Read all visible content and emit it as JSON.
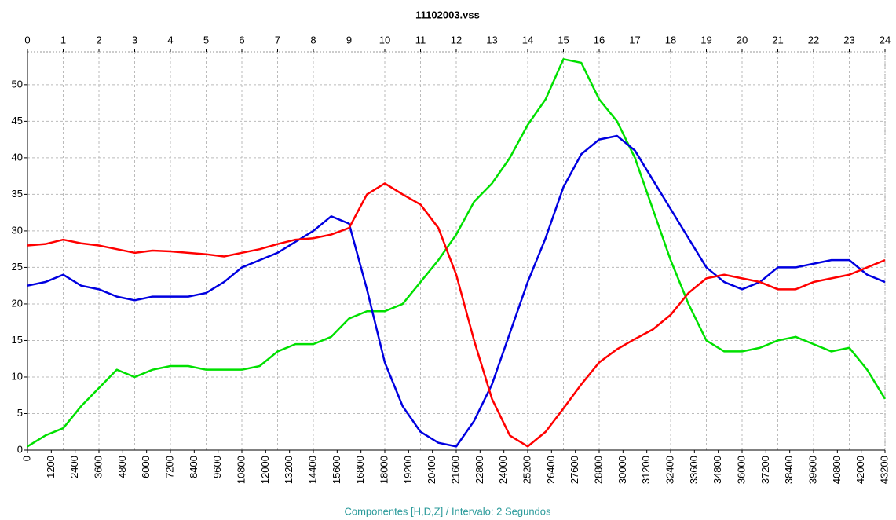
{
  "chart_data": {
    "type": "line",
    "title": "11102003.vss",
    "x_label": "Componentes [H,D,Z] / Intervalo: 2 Segundos",
    "x": [
      0,
      900,
      1800,
      2700,
      3600,
      4500,
      5400,
      6300,
      7200,
      8100,
      9000,
      9900,
      10800,
      11700,
      12600,
      13500,
      14400,
      15300,
      16200,
      17100,
      18000,
      18900,
      19800,
      20700,
      21600,
      22500,
      23400,
      24300,
      25200,
      26100,
      27000,
      27900,
      28800,
      29700,
      30600,
      31500,
      32400,
      33300,
      34200,
      35100,
      36000,
      36900,
      37800,
      38700,
      39600,
      40500,
      41400,
      42300,
      43200
    ],
    "xlim": [
      0,
      43200
    ],
    "xticks": [
      0,
      1200,
      2400,
      3600,
      4800,
      6000,
      7200,
      8400,
      9600,
      10800,
      12000,
      13200,
      14400,
      15600,
      16800,
      18000,
      19200,
      20400,
      21600,
      22800,
      24000,
      25200,
      26400,
      27600,
      28800,
      30000,
      31200,
      32400,
      33600,
      34800,
      36000,
      37200,
      38400,
      39600,
      40800,
      42000,
      43200
    ],
    "x2lim": [
      0,
      24
    ],
    "x2ticks": [
      0,
      1,
      2,
      3,
      4,
      5,
      6,
      7,
      8,
      9,
      10,
      11,
      12,
      13,
      14,
      15,
      16,
      17,
      18,
      19,
      20,
      21,
      22,
      23,
      24
    ],
    "ylim": [
      0,
      54.5
    ],
    "yticks": [
      0,
      5,
      10,
      15,
      20,
      25,
      30,
      35,
      40,
      45,
      50
    ],
    "grid": true,
    "series": [
      {
        "color": "#00e000",
        "values": [
          0.5,
          2,
          3,
          6,
          8.5,
          11,
          10,
          11,
          11.5,
          11.5,
          11,
          11,
          11,
          11.5,
          13.5,
          14.5,
          14.5,
          15.5,
          18,
          19,
          19,
          20,
          23,
          26,
          29.5,
          34,
          36.5,
          40,
          44.5,
          48,
          53.5,
          53,
          48,
          45,
          40,
          33,
          26,
          20,
          15,
          13.5,
          13.5,
          14,
          15,
          15.5,
          14.5,
          13.5,
          14,
          11,
          7
        ]
      },
      {
        "color": "#0000e0",
        "values": [
          22.5,
          23,
          24,
          22.5,
          22,
          21,
          20.5,
          21,
          21,
          21,
          21.5,
          23,
          25,
          26,
          27,
          28.5,
          30,
          32,
          31,
          22,
          12,
          6,
          2.5,
          1,
          0.5,
          4,
          9,
          16,
          23,
          29,
          36,
          40.5,
          42.5,
          43,
          41,
          37,
          33,
          29,
          25,
          23,
          22,
          23,
          25,
          25,
          25.5,
          26,
          26,
          24,
          23
        ]
      },
      {
        "color": "#ff0000",
        "values": [
          28,
          28.2,
          28.8,
          28.3,
          28,
          27.5,
          27,
          27.3,
          27.2,
          27,
          26.8,
          26.5,
          27,
          27.5,
          28.2,
          28.8,
          29,
          29.5,
          30.4,
          35,
          36.5,
          35,
          33.6,
          30.4,
          24,
          15,
          7,
          2,
          0.5,
          2.5,
          5.7,
          9,
          12,
          13.8,
          15.2,
          16.5,
          18.5,
          21.5,
          23.5,
          24,
          23.5,
          23,
          22,
          22,
          23,
          23.5,
          24,
          25,
          26
        ]
      }
    ]
  }
}
